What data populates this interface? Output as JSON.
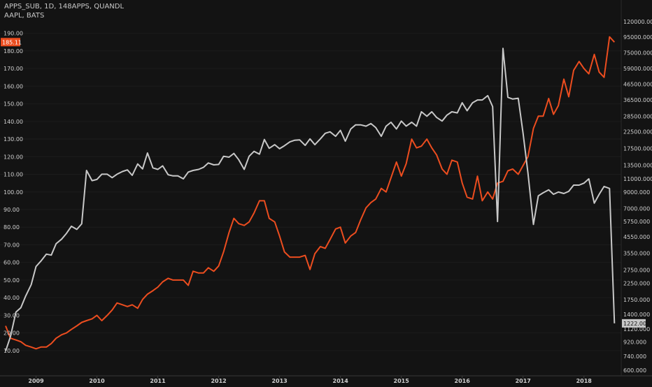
{
  "legend": {
    "main": "APPS_SUB, 1D, 148APPS, QUANDL",
    "sub": "AAPL, BATS"
  },
  "colors": {
    "background": "#131313",
    "apps_line": "#c8c8c8",
    "aapl_line": "#ec4d1f",
    "axis_text": "#cfcfcf",
    "grid": "#1c1c1c"
  },
  "chart_data": {
    "type": "line",
    "x_labels": [
      "2009",
      "2010",
      "2011",
      "2012",
      "2013",
      "2014",
      "2015",
      "2016",
      "2017",
      "2018"
    ],
    "left_axis": {
      "scale": "linear",
      "ticks": [
        "10.00",
        "20.00",
        "30.00",
        "40.00",
        "50.00",
        "60.00",
        "70.00",
        "80.00",
        "90.00",
        "100.00",
        "110.00",
        "120.00",
        "130.00",
        "140.00",
        "150.00",
        "160.00",
        "170.00",
        "180.00",
        "190.00"
      ],
      "range": [
        4,
        197
      ]
    },
    "right_axis": {
      "scale": "log",
      "ticks": [
        "600.000",
        "740.000",
        "920.000",
        "1120.000",
        "1400.000",
        "1750.000",
        "2250.000",
        "2750.000",
        "3550.000",
        "4550.000",
        "5750.000",
        "7000.000",
        "9000.000",
        "11000.000",
        "13500.000",
        "17500.000",
        "22500.000",
        "28500.000",
        "36500.000",
        "46500.000",
        "59000.000",
        "75000.000",
        "95000.000",
        "120000.000"
      ],
      "range": [
        580,
        135000
      ]
    },
    "series": [
      {
        "name": "AAPL",
        "axis": "left",
        "last_label": "185.11",
        "points": [
          [
            2008.5,
            24
          ],
          [
            2008.58,
            17
          ],
          [
            2008.67,
            16
          ],
          [
            2008.75,
            15
          ],
          [
            2008.83,
            13
          ],
          [
            2008.92,
            12
          ],
          [
            2009.0,
            11
          ],
          [
            2009.08,
            12
          ],
          [
            2009.17,
            12
          ],
          [
            2009.25,
            14
          ],
          [
            2009.33,
            17
          ],
          [
            2009.42,
            19
          ],
          [
            2009.5,
            20
          ],
          [
            2009.58,
            22
          ],
          [
            2009.67,
            24
          ],
          [
            2009.75,
            26
          ],
          [
            2009.83,
            27
          ],
          [
            2009.92,
            28
          ],
          [
            2010.0,
            30
          ],
          [
            2010.08,
            27
          ],
          [
            2010.17,
            30
          ],
          [
            2010.25,
            33
          ],
          [
            2010.33,
            37
          ],
          [
            2010.42,
            36
          ],
          [
            2010.5,
            35
          ],
          [
            2010.58,
            36
          ],
          [
            2010.67,
            34
          ],
          [
            2010.75,
            39
          ],
          [
            2010.83,
            42
          ],
          [
            2010.92,
            44
          ],
          [
            2011.0,
            46
          ],
          [
            2011.08,
            49
          ],
          [
            2011.17,
            51
          ],
          [
            2011.25,
            50
          ],
          [
            2011.33,
            50
          ],
          [
            2011.42,
            50
          ],
          [
            2011.5,
            47
          ],
          [
            2011.58,
            55
          ],
          [
            2011.67,
            54
          ],
          [
            2011.75,
            54
          ],
          [
            2011.83,
            57
          ],
          [
            2011.92,
            55
          ],
          [
            2012.0,
            58
          ],
          [
            2012.08,
            66
          ],
          [
            2012.17,
            77
          ],
          [
            2012.25,
            85
          ],
          [
            2012.33,
            82
          ],
          [
            2012.42,
            81
          ],
          [
            2012.5,
            83
          ],
          [
            2012.58,
            88
          ],
          [
            2012.67,
            95
          ],
          [
            2012.75,
            95
          ],
          [
            2012.83,
            85
          ],
          [
            2012.92,
            83
          ],
          [
            2013.0,
            75
          ],
          [
            2013.08,
            66
          ],
          [
            2013.17,
            63
          ],
          [
            2013.25,
            63
          ],
          [
            2013.33,
            63
          ],
          [
            2013.42,
            64
          ],
          [
            2013.5,
            56
          ],
          [
            2013.58,
            65
          ],
          [
            2013.67,
            69
          ],
          [
            2013.75,
            68
          ],
          [
            2013.83,
            73
          ],
          [
            2013.92,
            79
          ],
          [
            2014.0,
            80
          ],
          [
            2014.08,
            71
          ],
          [
            2014.17,
            75
          ],
          [
            2014.25,
            77
          ],
          [
            2014.33,
            84
          ],
          [
            2014.42,
            91
          ],
          [
            2014.5,
            94
          ],
          [
            2014.58,
            96
          ],
          [
            2014.67,
            102
          ],
          [
            2014.75,
            100
          ],
          [
            2014.83,
            108
          ],
          [
            2014.92,
            117
          ],
          [
            2015.0,
            109
          ],
          [
            2015.08,
            116
          ],
          [
            2015.17,
            130
          ],
          [
            2015.25,
            125
          ],
          [
            2015.33,
            126
          ],
          [
            2015.42,
            130
          ],
          [
            2015.5,
            125
          ],
          [
            2015.58,
            121
          ],
          [
            2015.67,
            113
          ],
          [
            2015.75,
            110
          ],
          [
            2015.83,
            118
          ],
          [
            2015.92,
            117
          ],
          [
            2016.0,
            105
          ],
          [
            2016.08,
            97
          ],
          [
            2016.17,
            96
          ],
          [
            2016.25,
            109
          ],
          [
            2016.33,
            95
          ],
          [
            2016.42,
            100
          ],
          [
            2016.5,
            96
          ],
          [
            2016.58,
            105
          ],
          [
            2016.67,
            106
          ],
          [
            2016.75,
            112
          ],
          [
            2016.83,
            113
          ],
          [
            2016.92,
            110
          ],
          [
            2017.0,
            115
          ],
          [
            2017.08,
            120
          ],
          [
            2017.17,
            136
          ],
          [
            2017.25,
            143
          ],
          [
            2017.33,
            143
          ],
          [
            2017.42,
            153
          ],
          [
            2017.5,
            144
          ],
          [
            2017.58,
            149
          ],
          [
            2017.67,
            164
          ],
          [
            2017.75,
            154
          ],
          [
            2017.83,
            169
          ],
          [
            2017.92,
            174
          ],
          [
            2018.0,
            170
          ],
          [
            2018.08,
            167
          ],
          [
            2018.17,
            178
          ],
          [
            2018.25,
            168
          ],
          [
            2018.33,
            165
          ],
          [
            2018.42,
            188
          ],
          [
            2018.5,
            185
          ]
        ]
      },
      {
        "name": "APPS_SUB",
        "axis": "right",
        "last_label": "1222.000",
        "points": [
          [
            2008.5,
            800
          ],
          [
            2008.58,
            1000
          ],
          [
            2008.67,
            1450
          ],
          [
            2008.75,
            1550
          ],
          [
            2008.83,
            1850
          ],
          [
            2008.92,
            2200
          ],
          [
            2009.0,
            2900
          ],
          [
            2009.08,
            3150
          ],
          [
            2009.17,
            3500
          ],
          [
            2009.25,
            3450
          ],
          [
            2009.33,
            4100
          ],
          [
            2009.42,
            4400
          ],
          [
            2009.5,
            4800
          ],
          [
            2009.58,
            5350
          ],
          [
            2009.67,
            5100
          ],
          [
            2009.75,
            5550
          ],
          [
            2009.83,
            12500
          ],
          [
            2009.92,
            10700
          ],
          [
            2010.0,
            10900
          ],
          [
            2010.08,
            11800
          ],
          [
            2010.17,
            11800
          ],
          [
            2010.25,
            11200
          ],
          [
            2010.33,
            11800
          ],
          [
            2010.42,
            12300
          ],
          [
            2010.5,
            12600
          ],
          [
            2010.58,
            11600
          ],
          [
            2010.67,
            13800
          ],
          [
            2010.75,
            12800
          ],
          [
            2010.83,
            16300
          ],
          [
            2010.92,
            13000
          ],
          [
            2011.0,
            12700
          ],
          [
            2011.08,
            13400
          ],
          [
            2011.17,
            11700
          ],
          [
            2011.25,
            11500
          ],
          [
            2011.33,
            11500
          ],
          [
            2011.42,
            11000
          ],
          [
            2011.5,
            12200
          ],
          [
            2011.58,
            12500
          ],
          [
            2011.67,
            12700
          ],
          [
            2011.75,
            13100
          ],
          [
            2011.83,
            14000
          ],
          [
            2011.92,
            13600
          ],
          [
            2012.0,
            13700
          ],
          [
            2012.08,
            15500
          ],
          [
            2012.17,
            15300
          ],
          [
            2012.25,
            16200
          ],
          [
            2012.33,
            14700
          ],
          [
            2012.42,
            12700
          ],
          [
            2012.5,
            15500
          ],
          [
            2012.58,
            16700
          ],
          [
            2012.67,
            16000
          ],
          [
            2012.75,
            20000
          ],
          [
            2012.83,
            17500
          ],
          [
            2012.92,
            18500
          ],
          [
            2013.0,
            17400
          ],
          [
            2013.08,
            18200
          ],
          [
            2013.17,
            19300
          ],
          [
            2013.25,
            19800
          ],
          [
            2013.33,
            19900
          ],
          [
            2013.42,
            18300
          ],
          [
            2013.5,
            20200
          ],
          [
            2013.58,
            18500
          ],
          [
            2013.67,
            20200
          ],
          [
            2013.75,
            22000
          ],
          [
            2013.83,
            22500
          ],
          [
            2013.92,
            21000
          ],
          [
            2014.0,
            23000
          ],
          [
            2014.08,
            19500
          ],
          [
            2014.17,
            23500
          ],
          [
            2014.25,
            25000
          ],
          [
            2014.33,
            25000
          ],
          [
            2014.42,
            24500
          ],
          [
            2014.5,
            25500
          ],
          [
            2014.58,
            24000
          ],
          [
            2014.67,
            21000
          ],
          [
            2014.75,
            24500
          ],
          [
            2014.83,
            26000
          ],
          [
            2014.92,
            23500
          ],
          [
            2015.0,
            26500
          ],
          [
            2015.08,
            24500
          ],
          [
            2015.17,
            26000
          ],
          [
            2015.25,
            24500
          ],
          [
            2015.33,
            30500
          ],
          [
            2015.42,
            28500
          ],
          [
            2015.5,
            30500
          ],
          [
            2015.58,
            28000
          ],
          [
            2015.67,
            26500
          ],
          [
            2015.75,
            29000
          ],
          [
            2015.83,
            30500
          ],
          [
            2015.92,
            30000
          ],
          [
            2016.0,
            35000
          ],
          [
            2016.08,
            31000
          ],
          [
            2016.17,
            35000
          ],
          [
            2016.25,
            36500
          ],
          [
            2016.33,
            36500
          ],
          [
            2016.42,
            39000
          ],
          [
            2016.5,
            33000
          ],
          [
            2016.58,
            5750
          ],
          [
            2016.67,
            80000
          ],
          [
            2016.75,
            38000
          ],
          [
            2016.83,
            37000
          ],
          [
            2016.92,
            37500
          ],
          [
            2017.0,
            22000
          ],
          [
            2017.08,
            12000
          ],
          [
            2017.17,
            5500
          ],
          [
            2017.25,
            8500
          ],
          [
            2017.33,
            8900
          ],
          [
            2017.42,
            9300
          ],
          [
            2017.5,
            8700
          ],
          [
            2017.58,
            9000
          ],
          [
            2017.67,
            8800
          ],
          [
            2017.75,
            9100
          ],
          [
            2017.83,
            10000
          ],
          [
            2017.92,
            10000
          ],
          [
            2018.0,
            10300
          ],
          [
            2018.08,
            11000
          ],
          [
            2018.17,
            7600
          ],
          [
            2018.25,
            8700
          ],
          [
            2018.33,
            9800
          ],
          [
            2018.42,
            9500
          ],
          [
            2018.5,
            1222
          ]
        ]
      }
    ]
  }
}
